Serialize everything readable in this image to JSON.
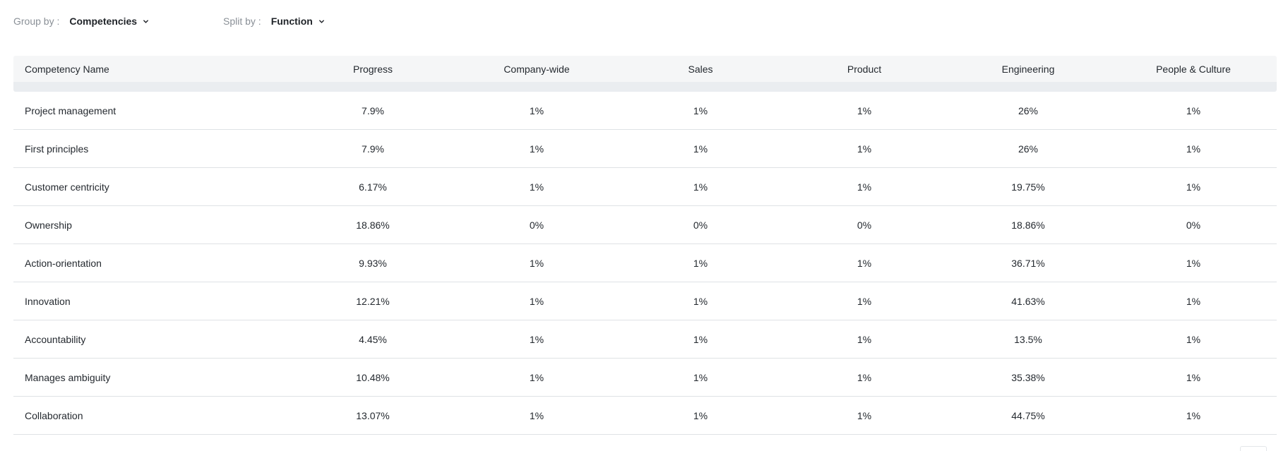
{
  "toolbar": {
    "group_by": {
      "label": "Group by :",
      "value": "Competencies"
    },
    "split_by": {
      "label": "Split by :",
      "value": "Function"
    }
  },
  "table": {
    "columns": [
      "Competency Name",
      "Progress",
      "Company-wide",
      "Sales",
      "Product",
      "Engineering",
      "People & Culture"
    ],
    "rows": [
      [
        "Project management",
        "7.9%",
        "1%",
        "1%",
        "1%",
        "26%",
        "1%"
      ],
      [
        "First principles",
        "7.9%",
        "1%",
        "1%",
        "1%",
        "26%",
        "1%"
      ],
      [
        "Customer centricity",
        "6.17%",
        "1%",
        "1%",
        "1%",
        "19.75%",
        "1%"
      ],
      [
        "Ownership",
        "18.86%",
        "0%",
        "0%",
        "0%",
        "18.86%",
        "0%"
      ],
      [
        "Action-orientation",
        "9.93%",
        "1%",
        "1%",
        "1%",
        "36.71%",
        "1%"
      ],
      [
        "Innovation",
        "12.21%",
        "1%",
        "1%",
        "1%",
        "41.63%",
        "1%"
      ],
      [
        "Accountability",
        "4.45%",
        "1%",
        "1%",
        "1%",
        "13.5%",
        "1%"
      ],
      [
        "Manages ambiguity",
        "10.48%",
        "1%",
        "1%",
        "1%",
        "35.38%",
        "1%"
      ],
      [
        "Collaboration",
        "13.07%",
        "1%",
        "1%",
        "1%",
        "44.75%",
        "1%"
      ]
    ]
  },
  "icons": {
    "group_chevron": "chevron-down-icon",
    "split_chevron": "chevron-down-icon"
  }
}
